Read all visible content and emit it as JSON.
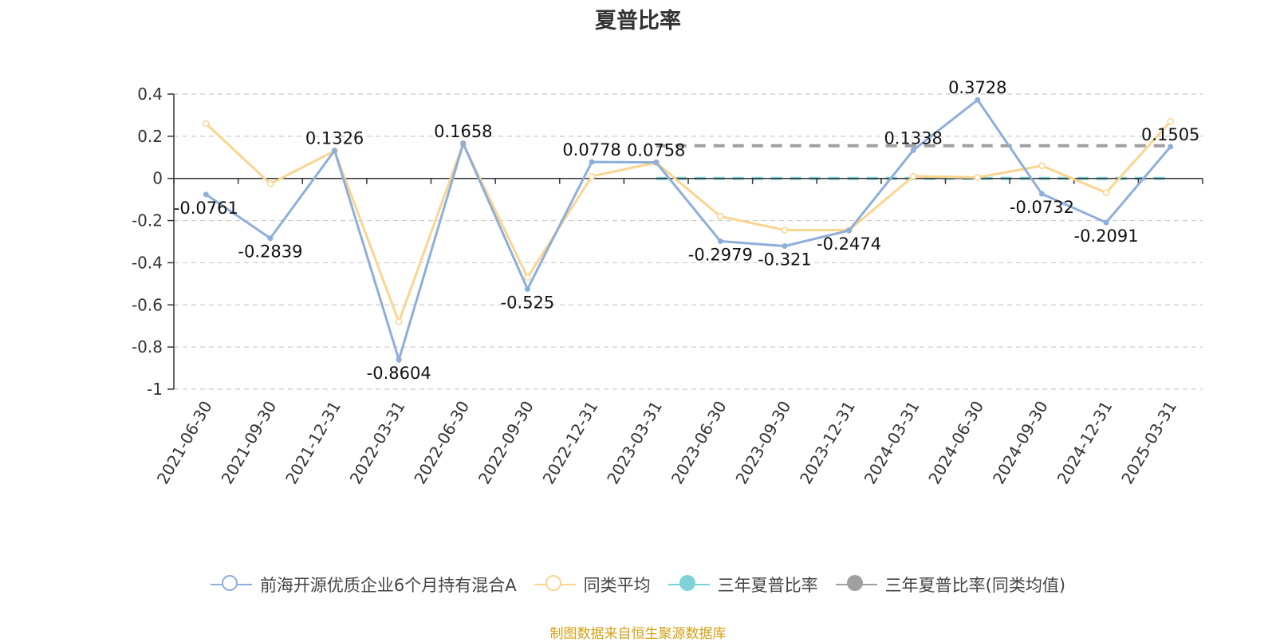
{
  "chart_data": {
    "type": "line",
    "title": "夏普比率",
    "categories": [
      "2021-06-30",
      "2021-09-30",
      "2021-12-31",
      "2022-03-31",
      "2022-06-30",
      "2022-09-30",
      "2022-12-31",
      "2023-03-31",
      "2023-06-30",
      "2023-09-30",
      "2023-12-31",
      "2024-03-31",
      "2024-06-30",
      "2024-09-30",
      "2024-12-31",
      "2025-03-31"
    ],
    "ylim": [
      -1,
      0.4
    ],
    "yticks": [
      "0.4",
      "0.2",
      "0",
      "-0.2",
      "-0.4",
      "-0.6",
      "-0.8",
      "-1"
    ],
    "grid": true,
    "legend_position": "bottom",
    "series": [
      {
        "name": "前海开源优质企业6个月持有混合A",
        "color": "#8eaedb",
        "values": [
          -0.0761,
          -0.2839,
          0.1326,
          -0.8604,
          0.1658,
          -0.525,
          0.0778,
          0.0758,
          -0.2979,
          -0.321,
          -0.2474,
          0.1338,
          0.3728,
          -0.0732,
          -0.2091,
          0.1505
        ],
        "labels": [
          "-0.0761",
          "-0.2839",
          "0.1326",
          "-0.8604",
          "0.1658",
          "-0.525",
          "0.0778",
          "0.0758",
          "-0.2979",
          "-0.321",
          "-0.2474",
          "0.1338",
          "0.3728",
          "-0.0732",
          "-0.2091",
          "0.1505"
        ]
      },
      {
        "name": "同类平均",
        "color": "#fbd58f",
        "values": [
          0.26,
          -0.025,
          0.13,
          -0.68,
          0.165,
          -0.47,
          0.01,
          0.075,
          -0.18,
          -0.245,
          -0.245,
          0.01,
          0.005,
          0.06,
          -0.068,
          0.27
        ]
      },
      {
        "name": "三年夏普比率",
        "color": "#7dd3d8",
        "values": [
          null,
          null,
          null,
          null,
          null,
          null,
          null,
          0.0,
          0.0,
          0.0,
          0.0,
          0.0,
          0.0,
          0.0,
          0.0,
          0.0
        ]
      },
      {
        "name": "三年夏普比率(同类均值)",
        "color": "#a0a0a0",
        "values": [
          null,
          null,
          null,
          null,
          null,
          null,
          null,
          0.155,
          0.155,
          0.155,
          0.155,
          0.155,
          0.155,
          0.155,
          0.155,
          0.155
        ]
      }
    ],
    "source": "制图数据来自恒生聚源数据库"
  }
}
